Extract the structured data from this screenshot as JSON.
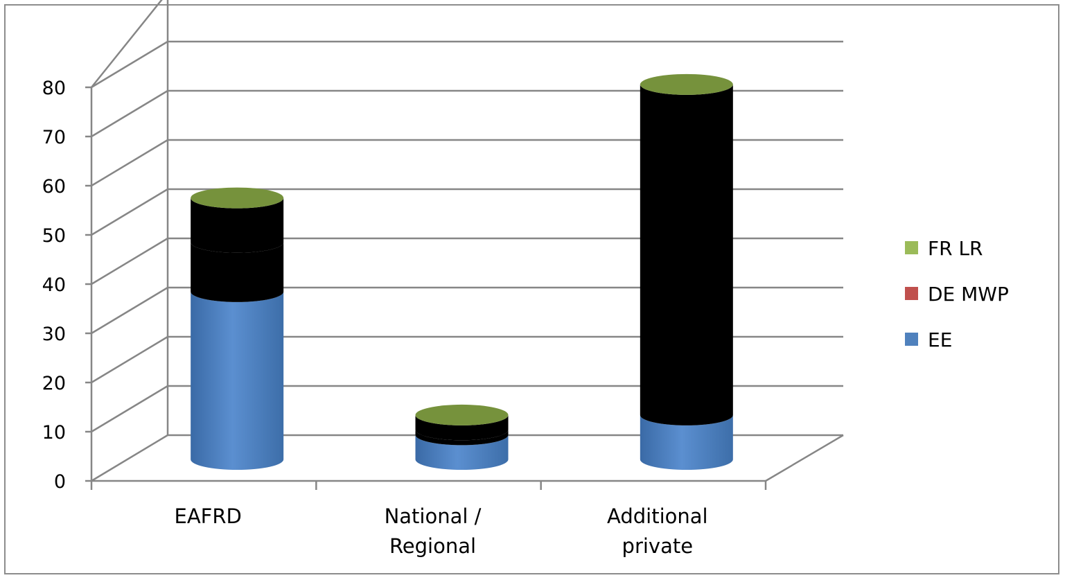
{
  "chart_data": {
    "type": "bar",
    "subtype": "stacked-3d-cylinder",
    "categories": [
      "EAFRD",
      "National / Regional",
      "Additional private"
    ],
    "category_lines": [
      [
        "EAFRD"
      ],
      [
        "National /",
        "Regional"
      ],
      [
        "Additional",
        "private"
      ]
    ],
    "series": [
      {
        "name": "EE",
        "values": [
          34,
          5,
          9
        ],
        "color": "#4f81bd"
      },
      {
        "name": "DE MWP",
        "values": [
          10,
          1,
          0
        ],
        "color": "#c0504d"
      },
      {
        "name": "FR LR",
        "values": [
          9,
          3,
          67
        ],
        "color": "#9bbb59"
      }
    ],
    "yticks": [
      "0",
      "10",
      "20",
      "30",
      "40",
      "50",
      "60",
      "70",
      "80"
    ],
    "ylim": [
      0,
      80
    ],
    "grid": true,
    "legend_position": "right",
    "legend_order": [
      "FR LR",
      "DE MWP",
      "EE"
    ]
  }
}
